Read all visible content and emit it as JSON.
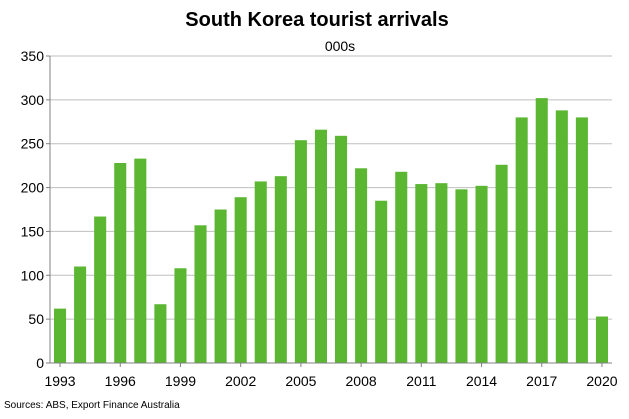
{
  "chart_data": {
    "type": "bar",
    "title": "South Korea tourist arrivals",
    "subtitle": "000s",
    "source": "Sources: ABS, Export Finance Australia",
    "ylim": [
      0,
      350
    ],
    "yticks": [
      0,
      50,
      100,
      150,
      200,
      250,
      300,
      350
    ],
    "x_tick_labels": [
      "1993",
      "1996",
      "1999",
      "2002",
      "2005",
      "2008",
      "2011",
      "2014",
      "2017",
      "2020"
    ],
    "grid": true,
    "bar_color": "#5BB632",
    "categories": [
      1993,
      1994,
      1995,
      1996,
      1997,
      1998,
      1999,
      2000,
      2001,
      2002,
      2003,
      2004,
      2005,
      2006,
      2007,
      2008,
      2009,
      2010,
      2011,
      2012,
      2013,
      2014,
      2015,
      2016,
      2017,
      2018,
      2019,
      2020
    ],
    "values": [
      62,
      110,
      167,
      228,
      233,
      67,
      108,
      157,
      175,
      189,
      207,
      213,
      254,
      266,
      259,
      222,
      185,
      218,
      204,
      205,
      198,
      202,
      226,
      280,
      302,
      288,
      280,
      53
    ]
  }
}
